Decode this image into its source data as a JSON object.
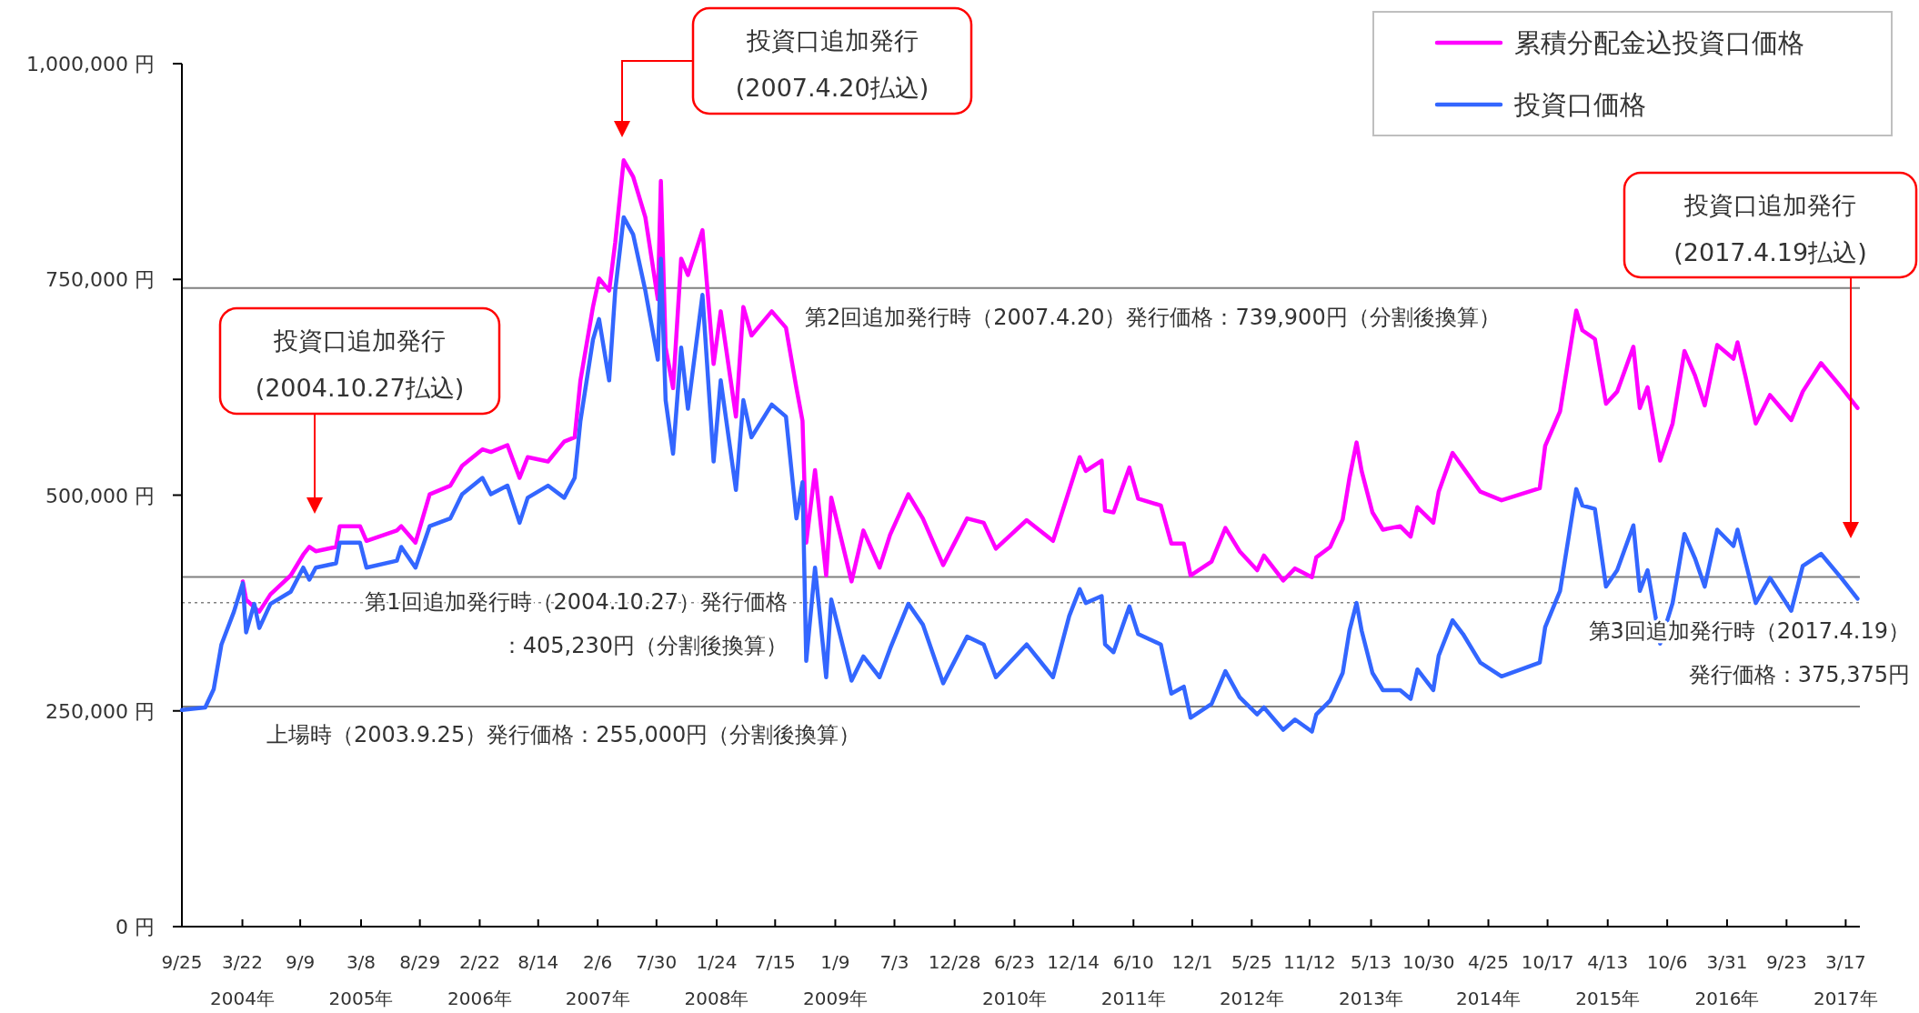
{
  "chart_data": {
    "type": "line",
    "legend": "top right",
    "xlim": [
      "2003-09-25",
      "2017-04-28"
    ],
    "ylim": [
      0,
      1000000
    ],
    "yticks": [
      {
        "value": 0,
        "label": "0 円"
      },
      {
        "value": 250000,
        "label": "250,000 円"
      },
      {
        "value": 500000,
        "label": "500,000 円"
      },
      {
        "value": 750000,
        "label": "750,000 円"
      },
      {
        "value": 1000000,
        "label": "1,000,000 円"
      }
    ],
    "xticks": [
      {
        "value": "2003-09-25",
        "label": "9/25"
      },
      {
        "value": "2004-03-22",
        "label": "3/22\n2004年"
      },
      {
        "value": "2004-09-09",
        "label": "9/9"
      },
      {
        "value": "2005-03-08",
        "label": "3/8\n2005年"
      },
      {
        "value": "2005-08-29",
        "label": "8/29"
      },
      {
        "value": "2006-02-22",
        "label": "2/22\n2006年"
      },
      {
        "value": "2006-08-14",
        "label": "8/14"
      },
      {
        "value": "2007-02-06",
        "label": "2/6\n2007年"
      },
      {
        "value": "2007-07-30",
        "label": "7/30"
      },
      {
        "value": "2008-01-24",
        "label": "1/24\n2008年"
      },
      {
        "value": "2008-07-15",
        "label": "7/15"
      },
      {
        "value": "2009-01-09",
        "label": "1/9\n2009年"
      },
      {
        "value": "2009-07-03",
        "label": "7/3"
      },
      {
        "value": "2009-12-28",
        "label": "12/28"
      },
      {
        "value": "2010-06-23",
        "label": "6/23\n2010年"
      },
      {
        "value": "2010-12-14",
        "label": "12/14"
      },
      {
        "value": "2011-06-10",
        "label": "6/10\n2011年"
      },
      {
        "value": "2011-12-01",
        "label": "12/1"
      },
      {
        "value": "2012-05-25",
        "label": "5/25\n2012年"
      },
      {
        "value": "2012-11-12",
        "label": "11/12"
      },
      {
        "value": "2013-05-13",
        "label": "5/13\n2013年"
      },
      {
        "value": "2013-10-30",
        "label": "10/30"
      },
      {
        "value": "2014-04-25",
        "label": "4/25\n2014年"
      },
      {
        "value": "2014-10-17",
        "label": "10/17"
      },
      {
        "value": "2015-04-13",
        "label": "4/13\n2015年"
      },
      {
        "value": "2015-10-06",
        "label": "10/6"
      },
      {
        "value": "2016-03-31",
        "label": "3/31\n2016年"
      },
      {
        "value": "2016-09-23",
        "label": "9/23"
      },
      {
        "value": "2017-03-17",
        "label": "3/17\n2017年"
      }
    ],
    "x": [
      "2003-09-25",
      "2003-12-03",
      "2003-12-28",
      "2004-01-20",
      "2004-02-26",
      "2004-03-23",
      "2004-04-02",
      "2004-04-26",
      "2004-05-11",
      "2004-06-13",
      "2004-08-12",
      "2004-09-18",
      "2004-10-06",
      "2004-10-25",
      "2004-12-24",
      "2005-01-04",
      "2005-03-05",
      "2005-03-24",
      "2005-06-22",
      "2005-07-05",
      "2005-08-16",
      "2005-09-27",
      "2005-11-27",
      "2006-01-01",
      "2006-03-02",
      "2006-03-27",
      "2006-05-15",
      "2006-06-20",
      "2006-07-14",
      "2006-09-12",
      "2006-10-30",
      "2006-11-30",
      "2006-12-17",
      "2007-01-23",
      "2007-02-10",
      "2007-03-12",
      "2007-03-30",
      "2007-04-24",
      "2007-05-22",
      "2007-06-27",
      "2007-08-03",
      "2007-08-12",
      "2007-08-26",
      "2007-09-17",
      "2007-10-11",
      "2007-10-31",
      "2007-12-13",
      "2008-01-15",
      "2008-02-05",
      "2008-03-21",
      "2008-04-12",
      "2008-05-06",
      "2008-07-05",
      "2008-08-16",
      "2008-09-16",
      "2008-10-04",
      "2008-10-15",
      "2008-11-10",
      "2008-12-13",
      "2008-12-28",
      "2009-02-26",
      "2009-04-02",
      "2009-05-20",
      "2009-06-20",
      "2009-08-13",
      "2009-09-25",
      "2009-11-24",
      "2010-02-03",
      "2010-03-24",
      "2010-04-29",
      "2010-07-29",
      "2010-10-15",
      "2010-12-02",
      "2011-01-02",
      "2011-01-20",
      "2011-03-08",
      "2011-03-18",
      "2011-04-12",
      "2011-05-29",
      "2011-06-24",
      "2011-08-30",
      "2011-09-30",
      "2011-11-06",
      "2011-11-26",
      "2012-01-27",
      "2012-03-08",
      "2012-04-19",
      "2012-06-10",
      "2012-06-30",
      "2012-08-26",
      "2012-09-30",
      "2012-11-19",
      "2012-12-02",
      "2013-01-12",
      "2013-02-18",
      "2013-03-10",
      "2013-03-31",
      "2013-04-15",
      "2013-05-17",
      "2013-06-17",
      "2013-08-07",
      "2013-09-07",
      "2013-09-27",
      "2013-11-13",
      "2013-11-29",
      "2014-01-09",
      "2014-02-09",
      "2014-04-01",
      "2014-06-03",
      "2014-09-24",
      "2014-10-10",
      "2014-11-23",
      "2015-01-10",
      "2015-01-28",
      "2015-03-06",
      "2015-04-08",
      "2015-05-11",
      "2015-06-28",
      "2015-07-17",
      "2015-08-09",
      "2015-09-15",
      "2015-10-22",
      "2015-11-26",
      "2015-12-27",
      "2016-01-25",
      "2016-03-02",
      "2016-04-19",
      "2016-05-01",
      "2016-05-25",
      "2016-06-24",
      "2016-08-05",
      "2016-10-07",
      "2016-11-10",
      "2017-01-03",
      "2017-03-04",
      "2017-04-21"
    ],
    "series": [
      {
        "name": "累積分配金込投資口価格",
        "color": "#ff00ff",
        "values": [
          null,
          null,
          null,
          null,
          null,
          400000,
          379000,
          370000,
          365000,
          385000,
          407000,
          431000,
          440000,
          435000,
          440000,
          464000,
          464000,
          447000,
          459000,
          464000,
          445000,
          501000,
          511000,
          534000,
          553000,
          550000,
          558000,
          520000,
          544000,
          539000,
          562000,
          567000,
          633000,
          718000,
          751000,
          737000,
          793000,
          888000,
          869000,
          822000,
          727000,
          864000,
          671000,
          624000,
          774000,
          755000,
          807000,
          652000,
          713000,
          591000,
          718000,
          685000,
          713000,
          694000,
          624000,
          586000,
          445000,
          529000,
          407000,
          497000,
          400000,
          459000,
          416000,
          454000,
          501000,
          473000,
          419000,
          473000,
          468000,
          438000,
          471000,
          447000,
          506000,
          544000,
          528000,
          540000,
          482000,
          480000,
          532000,
          496000,
          488000,
          444000,
          444000,
          407000,
          423000,
          462000,
          435000,
          413000,
          430000,
          401000,
          415000,
          405000,
          428000,
          440000,
          472000,
          520000,
          561000,
          528000,
          480000,
          460000,
          464000,
          452000,
          486000,
          468000,
          504000,
          549000,
          532000,
          504000,
          494000,
          508000,
          557000,
          597000,
          714000,
          691000,
          681000,
          606000,
          620000,
          672000,
          601000,
          625000,
          540000,
          583000,
          667000,
          639000,
          604000,
          674000,
          658000,
          677000,
          637000,
          583000,
          616000,
          587000,
          620000,
          653000,
          625000,
          601000
        ]
      },
      {
        "name": "投資口価格",
        "color": "#3366ff",
        "values": [
          251000,
          254000,
          275000,
          327000,
          365000,
          398000,
          341000,
          374000,
          346000,
          374000,
          388000,
          416000,
          402000,
          416000,
          421000,
          445000,
          445000,
          416000,
          424000,
          440000,
          416000,
          464000,
          473000,
          501000,
          520000,
          501000,
          511000,
          468000,
          497000,
          511000,
          497000,
          520000,
          586000,
          680000,
          704000,
          633000,
          737000,
          822000,
          802000,
          737000,
          657000,
          774000,
          610000,
          548000,
          671000,
          600000,
          732000,
          539000,
          633000,
          506000,
          610000,
          567000,
          605000,
          591000,
          473000,
          515000,
          308000,
          416000,
          289000,
          379000,
          285000,
          313000,
          289000,
          322000,
          374000,
          350000,
          282000,
          336000,
          327000,
          289000,
          327000,
          289000,
          360000,
          391000,
          375000,
          383000,
          327000,
          318000,
          371000,
          339000,
          327000,
          270000,
          278000,
          242000,
          258000,
          296000,
          266000,
          246000,
          254000,
          228000,
          240000,
          226000,
          246000,
          262000,
          294000,
          343000,
          375000,
          343000,
          294000,
          274000,
          274000,
          264000,
          298000,
          274000,
          314000,
          355000,
          339000,
          306000,
          290000,
          306000,
          347000,
          389000,
          507000,
          488000,
          484000,
          394000,
          413000,
          465000,
          389000,
          413000,
          328000,
          375000,
          455000,
          427000,
          394000,
          460000,
          441000,
          460000,
          422000,
          375000,
          404000,
          366000,
          418000,
          432000,
          404000,
          380000
        ]
      }
    ],
    "ref_lines": [
      {
        "axis": "y",
        "value": 255000,
        "label": "上場時（2003.9.25）発行価格：255,000円（分割後換算）",
        "color": "#808080"
      },
      {
        "axis": "y",
        "value": 405230,
        "label": "第1回追加発行時（2004.10.27）発行価格：405,230円（分割後換算）",
        "color": "#808080"
      },
      {
        "axis": "y",
        "value": 739900,
        "label": "第2回追加発行時（2007.4.20）発行価格：739,900円（分割後換算）",
        "color": "#808080"
      },
      {
        "axis": "y",
        "value": 375375,
        "label": "第3回追加発行時（2017.4.19）発行価格：375,375円",
        "color": "#808080",
        "line_style": "dotted"
      }
    ],
    "annotations": [
      "投資口追加発行(2004.10.27払込)",
      "投資口追加発行(2007.4.20払込)",
      "投資口追加発行(2017.4.19払込)"
    ]
  }
}
